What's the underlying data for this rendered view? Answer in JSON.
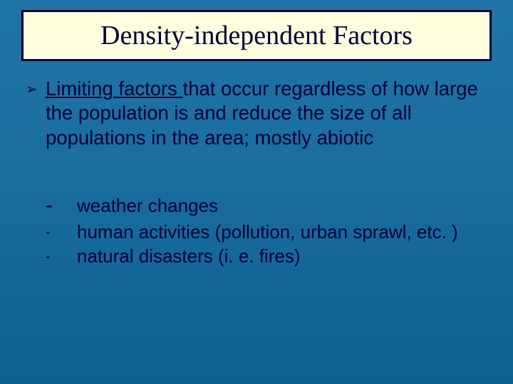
{
  "slide": {
    "background_gradient": [
      "#2075a8",
      "#1a6ea0",
      "#0f5f91"
    ],
    "title": {
      "text": "Density-independent Factors",
      "bg_color": "#ffffe0",
      "border_color": "#000033",
      "font_color": "#000033",
      "font_family": "Times New Roman",
      "font_size_pt": 28
    },
    "definition": {
      "bullet_glyph": "➢",
      "underlined_phrase": "Limiting factors ",
      "rest": "that occur regardless of how large the population is and reduce the size of all populations in the area; mostly abiotic",
      "font_size_pt": 21,
      "font_color": "#000033"
    },
    "examples": [
      {
        "dash_size": "big",
        "text": "weather changes"
      },
      {
        "dash_size": "small",
        "text": "human activities (pollution, urban sprawl, etc. )"
      },
      {
        "dash_size": "small",
        "text": "natural disasters (i. e. fires)"
      }
    ],
    "examples_font_size_pt": 20
  }
}
